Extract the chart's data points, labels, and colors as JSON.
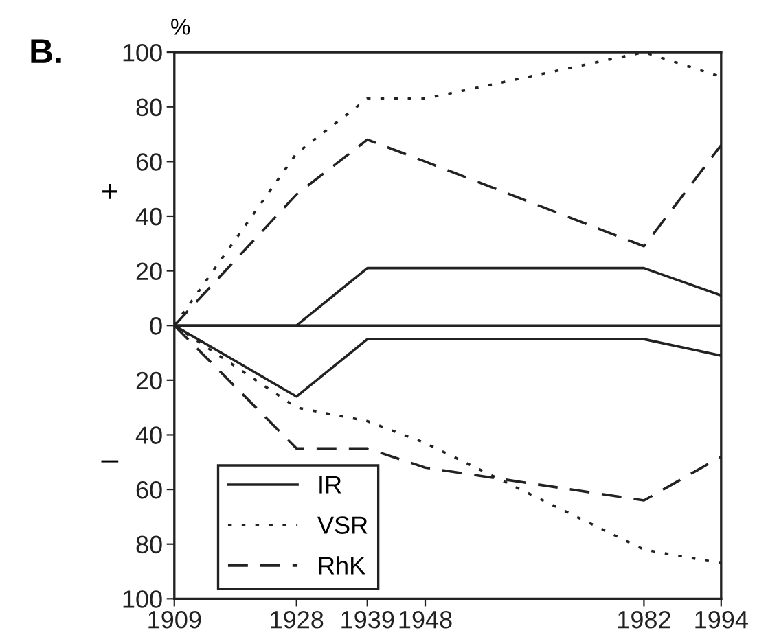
{
  "chart_data": {
    "type": "line",
    "ylabel": "%",
    "annotations": [
      "B.",
      "+",
      "–"
    ],
    "x": [
      1909,
      1928,
      1939,
      1948,
      1982,
      1994
    ],
    "series": [
      {
        "name": "IR",
        "color": "#222222",
        "line_style": "solid",
        "values": [
          0,
          0,
          21,
          21,
          21,
          11
        ]
      },
      {
        "name": "VSR",
        "color": "#222222",
        "line_style": "dotted",
        "values": [
          0,
          63,
          83,
          83,
          100,
          91
        ]
      },
      {
        "name": "RhK",
        "color": "#222222",
        "line_style": "dashed",
        "values": [
          0,
          48,
          68,
          60,
          29,
          66
        ]
      },
      {
        "color": "#222222",
        "line_style": "solid",
        "values": [
          0,
          -26,
          -5,
          -5,
          -5,
          -11
        ]
      },
      {
        "color": "#222222",
        "line_style": "dotted",
        "values": [
          0,
          -30,
          -35,
          -43,
          -82,
          -87
        ]
      },
      {
        "color": "#222222",
        "line_style": "dashed",
        "values": [
          0,
          -45,
          -45,
          -52,
          -64,
          -48
        ]
      }
    ],
    "xlim": [
      1909,
      1994
    ],
    "xticks": [
      1909,
      1928,
      1939,
      1948,
      1982,
      1994
    ],
    "ylim": [
      -100,
      100
    ],
    "yticks": [
      {
        "value": -100,
        "label": "100"
      },
      {
        "value": -80,
        "label": "80"
      },
      {
        "value": -60,
        "label": "60"
      },
      {
        "value": -40,
        "label": "40"
      },
      {
        "value": -20,
        "label": "20"
      },
      0,
      20,
      40,
      60,
      80,
      100
    ],
    "ref_lines": [
      {
        "axis": "y",
        "value": 0,
        "color": "#222222",
        "line_style": "solid"
      }
    ],
    "grid": false,
    "legend": "bottom left",
    "marker": "none"
  }
}
